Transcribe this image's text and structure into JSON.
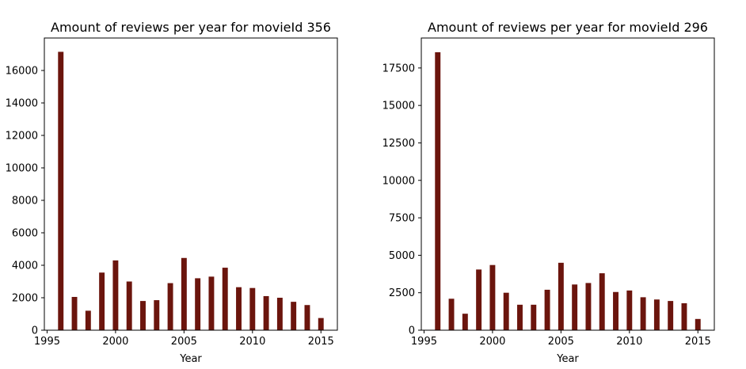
{
  "chart_data": [
    {
      "type": "bar",
      "title": "Amount of reviews per year for movieId 356",
      "xlabel": "Year",
      "ylabel": "",
      "x": [
        1996,
        1997,
        1998,
        1999,
        2000,
        2001,
        2002,
        2003,
        2004,
        2005,
        2006,
        2007,
        2008,
        2009,
        2010,
        2011,
        2012,
        2013,
        2014,
        2015
      ],
      "values": [
        17150,
        2050,
        1200,
        3550,
        4300,
        3000,
        1800,
        1850,
        2900,
        4450,
        3200,
        3300,
        3850,
        2650,
        2600,
        2100,
        2000,
        1750,
        1550,
        750
      ],
      "xlim": [
        1994.8,
        2016.2
      ],
      "ylim": [
        0,
        18000
      ],
      "xticks": [
        "1995",
        "2000",
        "2005",
        "2010",
        "2015"
      ],
      "yticks": [
        "0",
        "2000",
        "4000",
        "6000",
        "8000",
        "10000",
        "12000",
        "14000",
        "16000"
      ],
      "bar_color": "#6b150d",
      "grid": false
    },
    {
      "type": "bar",
      "title": "Amount of reviews per year for movieId 296",
      "xlabel": "Year",
      "ylabel": "",
      "x": [
        1996,
        1997,
        1998,
        1999,
        2000,
        2001,
        2002,
        2003,
        2004,
        2005,
        2006,
        2007,
        2008,
        2009,
        2010,
        2011,
        2012,
        2013,
        2014,
        2015
      ],
      "values": [
        18550,
        2100,
        1100,
        4050,
        4350,
        2500,
        1700,
        1700,
        2700,
        4500,
        3050,
        3150,
        3800,
        2550,
        2650,
        2200,
        2050,
        1950,
        1800,
        750
      ],
      "xlim": [
        1994.8,
        2016.2
      ],
      "ylim": [
        0,
        19500
      ],
      "xticks": [
        "1995",
        "2000",
        "2005",
        "2010",
        "2015"
      ],
      "yticks": [
        "0",
        "2500",
        "5000",
        "7500",
        "10000",
        "12500",
        "15000",
        "17500"
      ],
      "bar_color": "#6b150d",
      "grid": false
    }
  ]
}
